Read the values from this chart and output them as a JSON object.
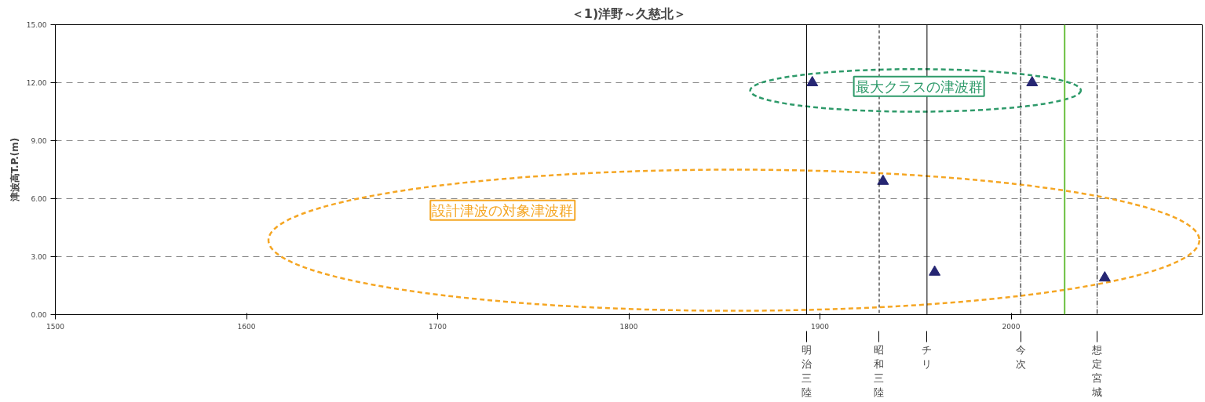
{
  "chart_data": {
    "type": "scatter",
    "title": "＜1)洋野～久慈北＞",
    "ylabel": "津波高T.P.(m)",
    "x": [
      1896,
      1933,
      1960,
      2011,
      2049
    ],
    "series": [
      {
        "color": "#262673",
        "values": [
          12.0,
          6.9,
          2.2,
          12.0,
          1.9
        ]
      }
    ],
    "marker": "triangle",
    "grid": "y",
    "xlim": [
      1500,
      2100
    ],
    "xticks": [
      1500,
      1600,
      1700,
      1800,
      1900,
      2000
    ],
    "ylim": [
      0,
      15
    ],
    "yticks": [
      {
        "value": 0,
        "label": "0.00"
      },
      {
        "value": 3,
        "label": "3.00"
      },
      {
        "value": 6,
        "label": "6.00"
      },
      {
        "value": 9,
        "label": "9.00"
      },
      {
        "value": 12,
        "label": "12.00"
      },
      {
        "value": 15,
        "label": "15.00"
      }
    ],
    "ref_lines": [
      {
        "axis": "x",
        "value": 1893,
        "label": "明治三陸",
        "color": "#000000",
        "line_style": "solid"
      },
      {
        "axis": "x",
        "value": 1931,
        "label": "昭和三陸",
        "color": "#000000",
        "line_style": "dashed"
      },
      {
        "axis": "x",
        "value": 1956,
        "label": "チリ",
        "color": "#000000",
        "line_style": "solid"
      },
      {
        "axis": "x",
        "value": 2005,
        "label": "今次",
        "color": "#000000",
        "line_style": "dashdot"
      },
      {
        "axis": "x",
        "value": 2028,
        "label": null,
        "color": "#6abf3f",
        "line_style": "solid"
      },
      {
        "axis": "x",
        "value": 2045,
        "label": "想定宮城",
        "color": "#000000",
        "line_style": "dashdot"
      }
    ],
    "annotations": [
      "最大クラスの津波群",
      "設計津波の対象津波群"
    ]
  }
}
